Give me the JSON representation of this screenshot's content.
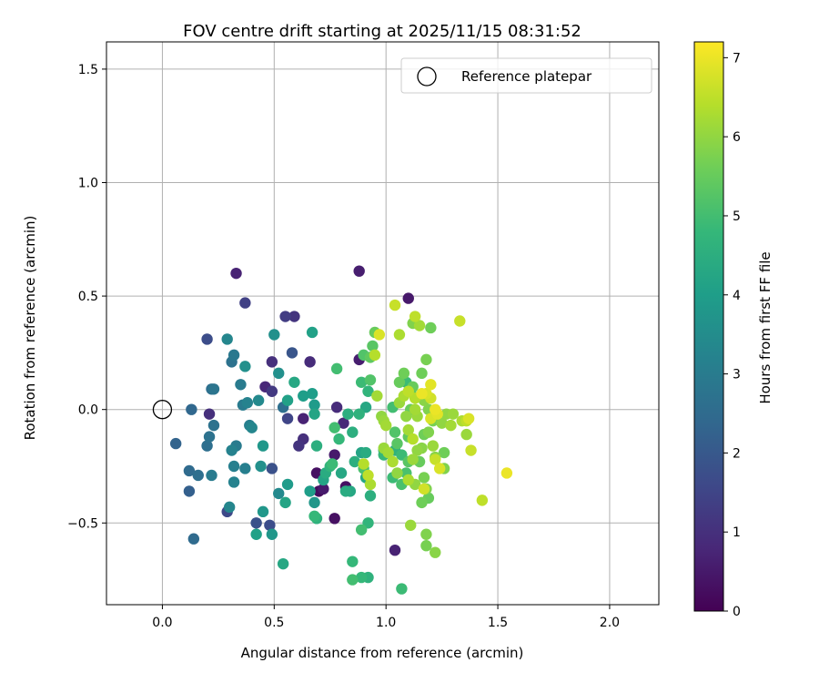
{
  "chart_data": {
    "type": "scatter",
    "title": "FOV centre drift starting at 2025/11/15 08:31:52",
    "xlabel": "Angular distance from reference (arcmin)",
    "ylabel": "Rotation from reference (arcmin)",
    "xlim": [
      -0.25,
      2.22
    ],
    "ylim": [
      -0.86,
      1.62
    ],
    "xticks": [
      0.0,
      0.5,
      1.0,
      1.5,
      2.0
    ],
    "xtick_labels": [
      "0.0",
      "0.5",
      "1.0",
      "1.5",
      "2.0"
    ],
    "yticks": [
      -0.5,
      0.0,
      0.5,
      1.0,
      1.5
    ],
    "ytick_labels": [
      "−0.5",
      "0.0",
      "0.5",
      "1.0",
      "1.5"
    ],
    "grid": true,
    "legend": {
      "position": "top-right",
      "entries": [
        "Reference platepar"
      ]
    },
    "reference_point": {
      "x": 0.0,
      "y": 0.0,
      "label": "Reference platepar"
    },
    "colorbar": {
      "label": "Hours from first FF file",
      "range": [
        0,
        7.2
      ],
      "ticks": [
        0,
        1,
        2,
        3,
        4,
        5,
        6,
        7
      ],
      "tick_labels": [
        "0",
        "1",
        "2",
        "3",
        "4",
        "5",
        "6",
        "7"
      ],
      "colormap": "viridis",
      "colors": [
        "#440154",
        "#482878",
        "#3e4989",
        "#31688e",
        "#26828e",
        "#1f9e89",
        "#35b779",
        "#6ece58",
        "#b5de2b",
        "#fde725"
      ]
    },
    "points": [
      {
        "x": 0.33,
        "y": 0.6,
        "h": 0.7
      },
      {
        "x": 0.88,
        "y": 0.61,
        "h": 0.6
      },
      {
        "x": 1.1,
        "y": 0.49,
        "h": 0.5
      },
      {
        "x": 0.37,
        "y": 0.47,
        "h": 1.4
      },
      {
        "x": 0.55,
        "y": 0.41,
        "h": 1.3
      },
      {
        "x": 0.59,
        "y": 0.41,
        "h": 1.1
      },
      {
        "x": 0.2,
        "y": 0.31,
        "h": 1.7
      },
      {
        "x": 0.58,
        "y": 0.25,
        "h": 1.9
      },
      {
        "x": 0.66,
        "y": 0.21,
        "h": 0.9
      },
      {
        "x": 0.49,
        "y": 0.21,
        "h": 1.0
      },
      {
        "x": 0.46,
        "y": 0.1,
        "h": 0.8
      },
      {
        "x": 0.49,
        "y": 0.08,
        "h": 1.2
      },
      {
        "x": 0.56,
        "y": -0.04,
        "h": 1.5
      },
      {
        "x": 0.63,
        "y": -0.04,
        "h": 0.7
      },
      {
        "x": 0.63,
        "y": -0.13,
        "h": 1.0
      },
      {
        "x": 0.61,
        "y": -0.16,
        "h": 1.1
      },
      {
        "x": 0.21,
        "y": -0.02,
        "h": 1.0
      },
      {
        "x": 0.78,
        "y": 0.01,
        "h": 0.9
      },
      {
        "x": 0.81,
        "y": -0.06,
        "h": 0.8
      },
      {
        "x": 0.77,
        "y": -0.2,
        "h": 0.5
      },
      {
        "x": 0.69,
        "y": -0.28,
        "h": 0.3
      },
      {
        "x": 0.7,
        "y": -0.36,
        "h": 0.2
      },
      {
        "x": 0.72,
        "y": -0.35,
        "h": 0.5
      },
      {
        "x": 0.77,
        "y": -0.48,
        "h": 0.3
      },
      {
        "x": 0.82,
        "y": -0.34,
        "h": 0.3
      },
      {
        "x": 1.04,
        "y": -0.62,
        "h": 0.7
      },
      {
        "x": 0.88,
        "y": 0.22,
        "h": 0.6
      },
      {
        "x": 0.42,
        "y": -0.5,
        "h": 1.8
      },
      {
        "x": 0.48,
        "y": -0.51,
        "h": 1.7
      },
      {
        "x": 0.49,
        "y": -0.26,
        "h": 1.8
      },
      {
        "x": 0.29,
        "y": -0.45,
        "h": 1.6
      },
      {
        "x": 0.12,
        "y": -0.36,
        "h": 2.2
      },
      {
        "x": 0.13,
        "y": 0.0,
        "h": 2.4
      },
      {
        "x": 0.06,
        "y": -0.15,
        "h": 2.3
      },
      {
        "x": 0.12,
        "y": -0.27,
        "h": 2.5
      },
      {
        "x": 0.16,
        "y": -0.29,
        "h": 2.6
      },
      {
        "x": 0.2,
        "y": -0.16,
        "h": 2.6
      },
      {
        "x": 0.21,
        "y": -0.12,
        "h": 2.7
      },
      {
        "x": 0.23,
        "y": -0.07,
        "h": 2.7
      },
      {
        "x": 0.22,
        "y": 0.09,
        "h": 2.6
      },
      {
        "x": 0.23,
        "y": 0.09,
        "h": 2.8
      },
      {
        "x": 0.14,
        "y": -0.57,
        "h": 2.5
      },
      {
        "x": 0.31,
        "y": 0.21,
        "h": 2.7
      },
      {
        "x": 0.32,
        "y": 0.24,
        "h": 2.9
      },
      {
        "x": 0.29,
        "y": 0.31,
        "h": 3.3
      },
      {
        "x": 0.37,
        "y": 0.19,
        "h": 3.6
      },
      {
        "x": 0.35,
        "y": 0.11,
        "h": 3.0
      },
      {
        "x": 0.38,
        "y": 0.03,
        "h": 3.2
      },
      {
        "x": 0.36,
        "y": 0.02,
        "h": 3.0
      },
      {
        "x": 0.39,
        "y": -0.07,
        "h": 3.1
      },
      {
        "x": 0.4,
        "y": -0.08,
        "h": 3.3
      },
      {
        "x": 0.43,
        "y": 0.04,
        "h": 3.4
      },
      {
        "x": 0.5,
        "y": 0.33,
        "h": 3.6
      },
      {
        "x": 0.52,
        "y": 0.16,
        "h": 3.6
      },
      {
        "x": 0.54,
        "y": 0.01,
        "h": 2.6
      },
      {
        "x": 0.31,
        "y": -0.18,
        "h": 3.2
      },
      {
        "x": 0.33,
        "y": -0.16,
        "h": 3.0
      },
      {
        "x": 0.32,
        "y": -0.25,
        "h": 3.1
      },
      {
        "x": 0.37,
        "y": -0.26,
        "h": 3.1
      },
      {
        "x": 0.22,
        "y": -0.29,
        "h": 3.0
      },
      {
        "x": 0.3,
        "y": -0.43,
        "h": 3.3
      },
      {
        "x": 0.32,
        "y": -0.32,
        "h": 3.2
      },
      {
        "x": 0.45,
        "y": -0.16,
        "h": 3.8
      },
      {
        "x": 0.44,
        "y": -0.25,
        "h": 3.6
      },
      {
        "x": 0.45,
        "y": -0.45,
        "h": 3.8
      },
      {
        "x": 0.42,
        "y": -0.55,
        "h": 4.1
      },
      {
        "x": 0.52,
        "y": -0.37,
        "h": 3.4
      },
      {
        "x": 0.56,
        "y": -0.33,
        "h": 3.9
      },
      {
        "x": 0.55,
        "y": -0.41,
        "h": 4.2
      },
      {
        "x": 0.54,
        "y": -0.68,
        "h": 4.3
      },
      {
        "x": 0.49,
        "y": -0.55,
        "h": 3.8
      },
      {
        "x": 0.56,
        "y": 0.04,
        "h": 4.1
      },
      {
        "x": 0.59,
        "y": 0.12,
        "h": 4.3
      },
      {
        "x": 0.63,
        "y": 0.06,
        "h": 4.0
      },
      {
        "x": 0.67,
        "y": 0.34,
        "h": 4.1
      },
      {
        "x": 0.67,
        "y": 0.07,
        "h": 4.0
      },
      {
        "x": 0.68,
        "y": 0.02,
        "h": 3.9
      },
      {
        "x": 0.68,
        "y": -0.02,
        "h": 4.2
      },
      {
        "x": 0.69,
        "y": -0.16,
        "h": 4.5
      },
      {
        "x": 0.66,
        "y": -0.36,
        "h": 4.0
      },
      {
        "x": 0.68,
        "y": -0.41,
        "h": 3.8
      },
      {
        "x": 0.68,
        "y": -0.47,
        "h": 4.8
      },
      {
        "x": 0.69,
        "y": -0.48,
        "h": 4.6
      },
      {
        "x": 0.72,
        "y": -0.31,
        "h": 4.2
      },
      {
        "x": 0.73,
        "y": -0.28,
        "h": 4.4
      },
      {
        "x": 0.75,
        "y": -0.25,
        "h": 4.7
      },
      {
        "x": 0.76,
        "y": -0.24,
        "h": 4.9
      },
      {
        "x": 0.78,
        "y": 0.18,
        "h": 5.0
      },
      {
        "x": 0.77,
        "y": -0.08,
        "h": 5.0
      },
      {
        "x": 0.79,
        "y": -0.13,
        "h": 4.8
      },
      {
        "x": 0.8,
        "y": -0.28,
        "h": 4.3
      },
      {
        "x": 0.82,
        "y": -0.36,
        "h": 4.4
      },
      {
        "x": 0.84,
        "y": -0.36,
        "h": 4.3
      },
      {
        "x": 0.85,
        "y": -0.1,
        "h": 4.5
      },
      {
        "x": 0.83,
        "y": -0.02,
        "h": 4.5
      },
      {
        "x": 0.86,
        "y": -0.23,
        "h": 4.5
      },
      {
        "x": 0.85,
        "y": -0.67,
        "h": 4.8
      },
      {
        "x": 0.85,
        "y": -0.75,
        "h": 5.0
      },
      {
        "x": 0.89,
        "y": -0.74,
        "h": 4.8
      },
      {
        "x": 0.92,
        "y": -0.74,
        "h": 4.6
      },
      {
        "x": 0.89,
        "y": -0.53,
        "h": 5.0
      },
      {
        "x": 0.92,
        "y": -0.5,
        "h": 4.7
      },
      {
        "x": 0.93,
        "y": -0.38,
        "h": 4.5
      },
      {
        "x": 0.91,
        "y": -0.3,
        "h": 4.3
      },
      {
        "x": 0.89,
        "y": -0.19,
        "h": 4.2
      },
      {
        "x": 0.9,
        "y": -0.26,
        "h": 5.1
      },
      {
        "x": 0.88,
        "y": -0.02,
        "h": 4.6
      },
      {
        "x": 0.91,
        "y": 0.01,
        "h": 4.3
      },
      {
        "x": 0.92,
        "y": 0.08,
        "h": 4.7
      },
      {
        "x": 0.89,
        "y": 0.12,
        "h": 4.9
      },
      {
        "x": 0.9,
        "y": 0.24,
        "h": 5.2
      },
      {
        "x": 0.93,
        "y": 0.23,
        "h": 5.4
      },
      {
        "x": 0.94,
        "y": 0.28,
        "h": 5.3
      },
      {
        "x": 0.95,
        "y": 0.34,
        "h": 5.5
      },
      {
        "x": 0.93,
        "y": 0.13,
        "h": 5.2
      },
      {
        "x": 0.99,
        "y": -0.2,
        "h": 4.8
      },
      {
        "x": 0.99,
        "y": -0.18,
        "h": 4.6
      },
      {
        "x": 1.03,
        "y": -0.3,
        "h": 4.9
      },
      {
        "x": 1.04,
        "y": -0.18,
        "h": 4.6
      },
      {
        "x": 1.07,
        "y": -0.2,
        "h": 4.9
      },
      {
        "x": 1.07,
        "y": -0.33,
        "h": 5.1
      },
      {
        "x": 1.07,
        "y": -0.79,
        "h": 4.9
      },
      {
        "x": 1.09,
        "y": -0.28,
        "h": 5.1
      },
      {
        "x": 1.1,
        "y": -0.23,
        "h": 5.3
      },
      {
        "x": 1.1,
        "y": -0.12,
        "h": 5.4
      },
      {
        "x": 1.11,
        "y": 0.0,
        "h": 5.5
      },
      {
        "x": 1.11,
        "y": 0.08,
        "h": 5.3
      },
      {
        "x": 1.06,
        "y": 0.12,
        "h": 5.5
      },
      {
        "x": 1.08,
        "y": 0.16,
        "h": 5.6
      },
      {
        "x": 1.12,
        "y": 0.1,
        "h": 5.5
      },
      {
        "x": 1.12,
        "y": 0.38,
        "h": 5.8
      },
      {
        "x": 1.15,
        "y": 0.37,
        "h": 6.2
      },
      {
        "x": 1.16,
        "y": 0.16,
        "h": 5.6
      },
      {
        "x": 1.18,
        "y": 0.22,
        "h": 5.7
      },
      {
        "x": 1.2,
        "y": 0.36,
        "h": 5.6
      },
      {
        "x": 1.17,
        "y": 0.04,
        "h": 5.9
      },
      {
        "x": 1.19,
        "y": 0.0,
        "h": 5.8
      },
      {
        "x": 1.21,
        "y": -0.05,
        "h": 5.7
      },
      {
        "x": 1.17,
        "y": -0.11,
        "h": 5.6
      },
      {
        "x": 1.19,
        "y": -0.1,
        "h": 5.8
      },
      {
        "x": 1.16,
        "y": -0.17,
        "h": 5.9
      },
      {
        "x": 1.15,
        "y": -0.23,
        "h": 5.5
      },
      {
        "x": 1.17,
        "y": -0.3,
        "h": 5.7
      },
      {
        "x": 1.18,
        "y": -0.35,
        "h": 5.8
      },
      {
        "x": 1.16,
        "y": -0.41,
        "h": 5.6
      },
      {
        "x": 1.19,
        "y": -0.39,
        "h": 5.5
      },
      {
        "x": 1.18,
        "y": -0.55,
        "h": 5.8
      },
      {
        "x": 1.18,
        "y": -0.6,
        "h": 5.7
      },
      {
        "x": 1.22,
        "y": -0.63,
        "h": 5.9
      },
      {
        "x": 1.11,
        "y": -0.51,
        "h": 6.1
      },
      {
        "x": 1.13,
        "y": -0.33,
        "h": 6.0
      },
      {
        "x": 1.12,
        "y": -0.22,
        "h": 6.1
      },
      {
        "x": 1.14,
        "y": -0.18,
        "h": 6.0
      },
      {
        "x": 1.22,
        "y": -0.21,
        "h": 5.9
      },
      {
        "x": 1.26,
        "y": -0.19,
        "h": 5.6
      },
      {
        "x": 1.26,
        "y": -0.26,
        "h": 5.8
      },
      {
        "x": 1.27,
        "y": -0.02,
        "h": 6.0
      },
      {
        "x": 1.29,
        "y": -0.07,
        "h": 6.2
      },
      {
        "x": 1.3,
        "y": -0.02,
        "h": 6.1
      },
      {
        "x": 1.33,
        "y": 0.39,
        "h": 6.6
      },
      {
        "x": 1.34,
        "y": -0.05,
        "h": 6.3
      },
      {
        "x": 1.36,
        "y": -0.11,
        "h": 6.1
      },
      {
        "x": 1.36,
        "y": -0.05,
        "h": 6.5
      },
      {
        "x": 1.38,
        "y": -0.18,
        "h": 6.6
      },
      {
        "x": 1.43,
        "y": -0.4,
        "h": 6.5
      },
      {
        "x": 1.54,
        "y": -0.28,
        "h": 7.0
      },
      {
        "x": 1.37,
        "y": -0.04,
        "h": 6.8
      },
      {
        "x": 1.24,
        "y": -0.26,
        "h": 6.8
      },
      {
        "x": 1.2,
        "y": -0.04,
        "h": 6.8
      },
      {
        "x": 1.23,
        "y": -0.02,
        "h": 6.9
      },
      {
        "x": 1.22,
        "y": 0.0,
        "h": 7.0
      },
      {
        "x": 1.2,
        "y": 0.05,
        "h": 6.7
      },
      {
        "x": 1.18,
        "y": 0.07,
        "h": 6.8
      },
      {
        "x": 1.2,
        "y": 0.11,
        "h": 6.9
      },
      {
        "x": 1.16,
        "y": 0.07,
        "h": 7.0
      },
      {
        "x": 1.13,
        "y": 0.05,
        "h": 6.4
      },
      {
        "x": 1.1,
        "y": 0.08,
        "h": 6.5
      },
      {
        "x": 1.08,
        "y": 0.06,
        "h": 6.3
      },
      {
        "x": 1.06,
        "y": 0.03,
        "h": 6.1
      },
      {
        "x": 1.09,
        "y": -0.03,
        "h": 6.0
      },
      {
        "x": 1.13,
        "y": 0.0,
        "h": 6.2
      },
      {
        "x": 1.14,
        "y": -0.03,
        "h": 6.1
      },
      {
        "x": 1.1,
        "y": -0.09,
        "h": 6.2
      },
      {
        "x": 1.12,
        "y": -0.13,
        "h": 6.4
      },
      {
        "x": 1.06,
        "y": 0.33,
        "h": 6.3
      },
      {
        "x": 1.04,
        "y": 0.46,
        "h": 6.6
      },
      {
        "x": 1.13,
        "y": 0.41,
        "h": 6.5
      },
      {
        "x": 0.97,
        "y": 0.33,
        "h": 6.8
      },
      {
        "x": 0.95,
        "y": 0.24,
        "h": 6.4
      },
      {
        "x": 0.96,
        "y": 0.06,
        "h": 6.2
      },
      {
        "x": 0.98,
        "y": -0.03,
        "h": 6.0
      },
      {
        "x": 0.99,
        "y": -0.05,
        "h": 6.1
      },
      {
        "x": 1.0,
        "y": -0.07,
        "h": 6.2
      },
      {
        "x": 0.99,
        "y": -0.17,
        "h": 6.1
      },
      {
        "x": 1.01,
        "y": -0.19,
        "h": 6.2
      },
      {
        "x": 1.03,
        "y": -0.23,
        "h": 6.3
      },
      {
        "x": 0.9,
        "y": -0.24,
        "h": 6.4
      },
      {
        "x": 0.92,
        "y": -0.29,
        "h": 6.5
      },
      {
        "x": 0.93,
        "y": -0.33,
        "h": 6.3
      },
      {
        "x": 1.05,
        "y": -0.28,
        "h": 6.0
      },
      {
        "x": 1.1,
        "y": -0.31,
        "h": 6.3
      },
      {
        "x": 1.17,
        "y": -0.35,
        "h": 6.7
      },
      {
        "x": 1.22,
        "y": -0.22,
        "h": 6.6
      },
      {
        "x": 1.21,
        "y": -0.16,
        "h": 6.1
      },
      {
        "x": 1.25,
        "y": -0.06,
        "h": 6.0
      },
      {
        "x": 1.04,
        "y": -0.1,
        "h": 5.2
      },
      {
        "x": 1.03,
        "y": 0.01,
        "h": 5.0
      },
      {
        "x": 1.09,
        "y": 0.12,
        "h": 4.9
      },
      {
        "x": 1.05,
        "y": -0.15,
        "h": 5.3
      },
      {
        "x": 0.91,
        "y": -0.19,
        "h": 4.4
      }
    ]
  }
}
